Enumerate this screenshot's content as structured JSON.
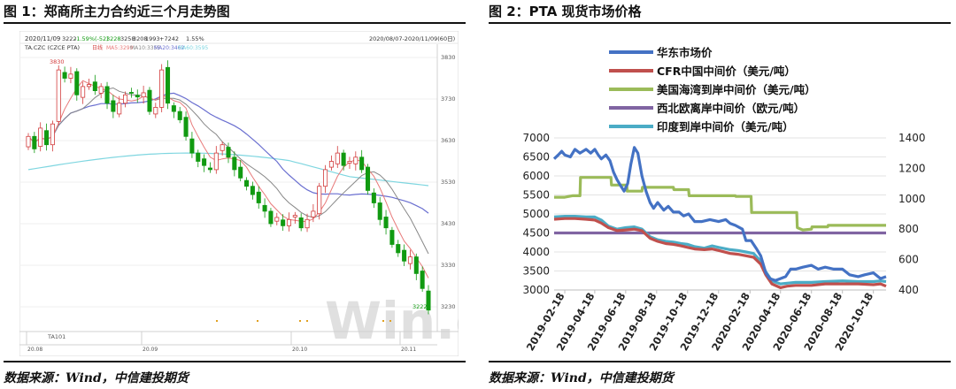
{
  "left": {
    "title": "图 1：郑商所主力合约近三个月走势图",
    "source": "数据来源：Wind，中信建投期货",
    "header_date": "2020/11/09",
    "header_ohlc": [
      "3222",
      "-1.59%(-52)",
      "3228",
      "3258",
      "3208",
      "1993",
      "+7242",
      "1.55%"
    ],
    "range_label": "2020/08/07-2020/11/09(60日)",
    "indicator_label": "TA.CZC (CZCE PTA)",
    "ma_labels": [
      "日线",
      "MA5:3299",
      "MA10:3355",
      "MA20:3462",
      "MA60:3595"
    ],
    "watermark": "Win.d",
    "contract_label": "TA101",
    "price_axis": [
      "3830",
      "3730",
      "3630",
      "3530",
      "3430",
      "3330",
      "3230"
    ],
    "date_axis": [
      "20.08",
      "20.09",
      "20.10",
      "20.11"
    ],
    "high_label": "3830",
    "last_label": "3222",
    "colors": {
      "up": "#d23b3b",
      "down": "#119a11",
      "ma5": "#e87a7a",
      "ma10": "#888888",
      "ma20": "#6a6fd0",
      "ma60": "#7fd6e0"
    }
  },
  "right": {
    "title": "图 2：PTA 现货市场价格",
    "source": "数据来源：Wind，中信建投期货",
    "chart_data": {
      "type": "line",
      "title": "",
      "y_left": {
        "ticks": [
          3000,
          3500,
          4000,
          4500,
          5000,
          5500,
          6000,
          6500,
          7000
        ],
        "range": [
          3000,
          7000
        ]
      },
      "y_right": {
        "ticks": [
          400,
          600,
          800,
          1000,
          1200,
          1400
        ],
        "range": [
          400,
          1400
        ]
      },
      "x_range": [
        "2019-01-28",
        "2020-11-12"
      ],
      "x_ticks": [
        "2019-02-18",
        "2019-04-18",
        "2019-06-18",
        "2019-08-18",
        "2019-10-18",
        "2019-12-18",
        "2020-02-18",
        "2020-04-18",
        "2020-06-18",
        "2020-08-18",
        "2020-10-18"
      ],
      "legend_position": "top",
      "grid": "horizontal",
      "series": [
        {
          "name": "华东市场价",
          "axis": "left",
          "color": "#4472c4",
          "points": [
            [
              "2019-01-28",
              6450
            ],
            [
              "2019-02-05",
              6550
            ],
            [
              "2019-02-12",
              6650
            ],
            [
              "2019-02-18",
              6550
            ],
            [
              "2019-03-01",
              6500
            ],
            [
              "2019-03-10",
              6700
            ],
            [
              "2019-03-20",
              6600
            ],
            [
              "2019-04-01",
              6700
            ],
            [
              "2019-04-10",
              6600
            ],
            [
              "2019-04-18",
              6700
            ],
            [
              "2019-04-25",
              6550
            ],
            [
              "2019-05-01",
              6450
            ],
            [
              "2019-05-10",
              6550
            ],
            [
              "2019-05-18",
              6400
            ],
            [
              "2019-05-25",
              6100
            ],
            [
              "2019-06-01",
              5900
            ],
            [
              "2019-06-10",
              5700
            ],
            [
              "2019-06-15",
              5600
            ],
            [
              "2019-06-22",
              5800
            ],
            [
              "2019-06-28",
              6300
            ],
            [
              "2019-07-05",
              6750
            ],
            [
              "2019-07-12",
              6600
            ],
            [
              "2019-07-20",
              6000
            ],
            [
              "2019-07-28",
              5600
            ],
            [
              "2019-08-05",
              5300
            ],
            [
              "2019-08-12",
              5150
            ],
            [
              "2019-08-20",
              5300
            ],
            [
              "2019-09-01",
              5100
            ],
            [
              "2019-09-10",
              5200
            ],
            [
              "2019-09-20",
              5050
            ],
            [
              "2019-10-01",
              5050
            ],
            [
              "2019-10-10",
              4950
            ],
            [
              "2019-10-20",
              5000
            ],
            [
              "2019-11-01",
              4800
            ],
            [
              "2019-11-15",
              4800
            ],
            [
              "2019-12-01",
              4850
            ],
            [
              "2019-12-18",
              4800
            ],
            [
              "2020-01-01",
              4850
            ],
            [
              "2020-01-10",
              4750
            ],
            [
              "2020-01-20",
              4700
            ],
            [
              "2020-02-03",
              4600
            ],
            [
              "2020-02-10",
              4300
            ],
            [
              "2020-02-20",
              4300
            ],
            [
              "2020-03-01",
              4100
            ],
            [
              "2020-03-10",
              3900
            ],
            [
              "2020-03-20",
              3450
            ],
            [
              "2020-03-28",
              3300
            ],
            [
              "2020-04-08",
              3250
            ],
            [
              "2020-04-18",
              3300
            ],
            [
              "2020-04-28",
              3350
            ],
            [
              "2020-05-08",
              3550
            ],
            [
              "2020-05-18",
              3550
            ],
            [
              "2020-06-01",
              3600
            ],
            [
              "2020-06-18",
              3650
            ],
            [
              "2020-07-01",
              3550
            ],
            [
              "2020-07-15",
              3600
            ],
            [
              "2020-08-01",
              3550
            ],
            [
              "2020-08-18",
              3550
            ],
            [
              "2020-09-01",
              3400
            ],
            [
              "2020-09-18",
              3350
            ],
            [
              "2020-10-01",
              3400
            ],
            [
              "2020-10-18",
              3450
            ],
            [
              "2020-11-01",
              3300
            ],
            [
              "2020-11-12",
              3350
            ]
          ]
        },
        {
          "name": "CFR中国中间价（美元/吨）",
          "axis": "right",
          "color": "#c0504d",
          "points": [
            [
              "2019-01-28",
              865
            ],
            [
              "2019-02-18",
              870
            ],
            [
              "2019-03-10",
              870
            ],
            [
              "2019-04-01",
              865
            ],
            [
              "2019-04-18",
              860
            ],
            [
              "2019-05-01",
              840
            ],
            [
              "2019-05-15",
              810
            ],
            [
              "2019-06-01",
              790
            ],
            [
              "2019-06-18",
              795
            ],
            [
              "2019-07-05",
              800
            ],
            [
              "2019-07-20",
              790
            ],
            [
              "2019-08-05",
              740
            ],
            [
              "2019-08-20",
              720
            ],
            [
              "2019-09-05",
              705
            ],
            [
              "2019-09-20",
              700
            ],
            [
              "2019-10-05",
              690
            ],
            [
              "2019-10-18",
              680
            ],
            [
              "2019-11-01",
              670
            ],
            [
              "2019-11-20",
              665
            ],
            [
              "2019-12-05",
              670
            ],
            [
              "2019-12-18",
              660
            ],
            [
              "2020-01-10",
              640
            ],
            [
              "2020-01-25",
              635
            ],
            [
              "2020-02-10",
              625
            ],
            [
              "2020-02-25",
              615
            ],
            [
              "2020-03-10",
              570
            ],
            [
              "2020-03-20",
              500
            ],
            [
              "2020-04-01",
              440
            ],
            [
              "2020-04-18",
              415
            ],
            [
              "2020-05-01",
              425
            ],
            [
              "2020-05-18",
              430
            ],
            [
              "2020-06-18",
              430
            ],
            [
              "2020-07-15",
              440
            ],
            [
              "2020-08-18",
              440
            ],
            [
              "2020-09-18",
              440
            ],
            [
              "2020-10-18",
              435
            ],
            [
              "2020-11-01",
              440
            ],
            [
              "2020-11-12",
              425
            ]
          ]
        },
        {
          "name": "美国海湾到岸中间价（美元/吨）",
          "axis": "right",
          "color": "#9bbb59",
          "points": [
            [
              "2019-01-28",
              1010
            ],
            [
              "2019-02-18",
              1010
            ],
            [
              "2019-03-05",
              1020
            ],
            [
              "2019-03-20",
              1020
            ],
            [
              "2019-03-21",
              1140
            ],
            [
              "2019-05-20",
              1140
            ],
            [
              "2019-05-21",
              1090
            ],
            [
              "2019-06-20",
              1090
            ],
            [
              "2019-06-21",
              1050
            ],
            [
              "2019-07-20",
              1050
            ],
            [
              "2019-07-21",
              1075
            ],
            [
              "2019-09-20",
              1075
            ],
            [
              "2019-09-21",
              1060
            ],
            [
              "2019-10-20",
              1060
            ],
            [
              "2019-10-21",
              1020
            ],
            [
              "2020-01-20",
              1020
            ],
            [
              "2020-01-21",
              1015
            ],
            [
              "2020-02-20",
              1015
            ],
            [
              "2020-02-21",
              910
            ],
            [
              "2020-05-20",
              910
            ],
            [
              "2020-05-21",
              810
            ],
            [
              "2020-06-01",
              795
            ],
            [
              "2020-06-18",
              800
            ],
            [
              "2020-06-19",
              815
            ],
            [
              "2020-07-20",
              815
            ],
            [
              "2020-07-21",
              825
            ],
            [
              "2020-11-12",
              825
            ]
          ]
        },
        {
          "name": "西北欧离岸中间价（欧元/吨）",
          "axis": "right",
          "color": "#8064a2",
          "points": [
            [
              "2019-01-28",
              775
            ],
            [
              "2020-11-12",
              775
            ]
          ]
        },
        {
          "name": "印度到岸中间价（美元/吨）",
          "axis": "right",
          "color": "#4bacc6",
          "points": [
            [
              "2019-01-28",
              880
            ],
            [
              "2019-02-18",
              885
            ],
            [
              "2019-03-10",
              885
            ],
            [
              "2019-04-01",
              880
            ],
            [
              "2019-04-18",
              880
            ],
            [
              "2019-05-01",
              860
            ],
            [
              "2019-05-15",
              820
            ],
            [
              "2019-06-01",
              800
            ],
            [
              "2019-06-18",
              810
            ],
            [
              "2019-07-05",
              815
            ],
            [
              "2019-07-20",
              800
            ],
            [
              "2019-08-05",
              750
            ],
            [
              "2019-08-20",
              730
            ],
            [
              "2019-09-05",
              720
            ],
            [
              "2019-09-20",
              715
            ],
            [
              "2019-10-05",
              705
            ],
            [
              "2019-10-18",
              700
            ],
            [
              "2019-11-01",
              685
            ],
            [
              "2019-11-20",
              675
            ],
            [
              "2019-12-05",
              690
            ],
            [
              "2019-12-18",
              680
            ],
            [
              "2020-01-10",
              665
            ],
            [
              "2020-01-25",
              660
            ],
            [
              "2020-02-10",
              650
            ],
            [
              "2020-02-25",
              640
            ],
            [
              "2020-03-10",
              590
            ],
            [
              "2020-03-20",
              520
            ],
            [
              "2020-04-01",
              460
            ],
            [
              "2020-04-18",
              440
            ],
            [
              "2020-05-01",
              445
            ],
            [
              "2020-05-18",
              450
            ],
            [
              "2020-06-18",
              450
            ],
            [
              "2020-07-15",
              455
            ],
            [
              "2020-08-18",
              460
            ],
            [
              "2020-09-18",
              455
            ],
            [
              "2020-10-18",
              455
            ],
            [
              "2020-11-01",
              460
            ],
            [
              "2020-11-12",
              455
            ]
          ]
        }
      ]
    }
  }
}
